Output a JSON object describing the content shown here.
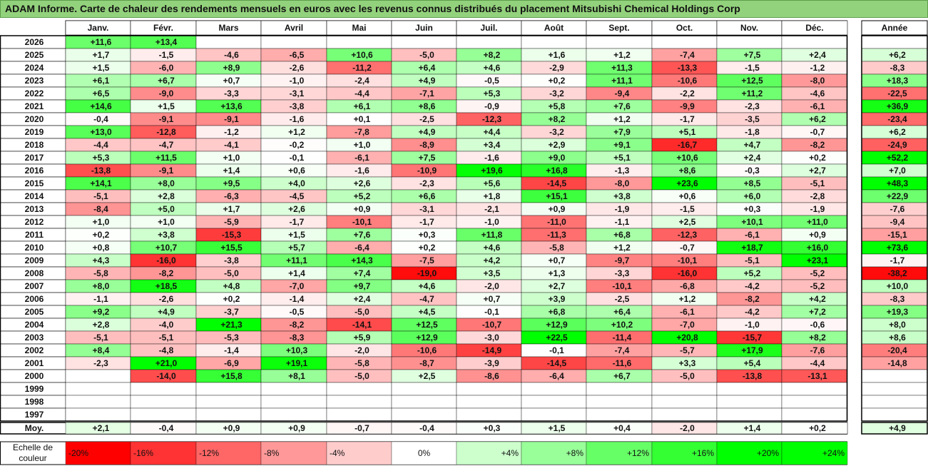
{
  "title": "ADAM Informe. Carte de chaleur des rendements mensuels en euros avec les revenus connus distribués du placement Mitsubishi Chemical Holdings Corp",
  "chart_data": {
    "type": "heatmap",
    "months": [
      "Janv.",
      "Févr.",
      "Mars",
      "Avril",
      "Mai",
      "Juin",
      "Juil.",
      "Août",
      "Sept.",
      "Oct.",
      "Nov.",
      "Déc."
    ],
    "year_header": "Année",
    "rows": [
      {
        "year": "2026",
        "months": [
          "+11,6",
          "+13,4",
          "",
          "",
          "",
          "",
          "",
          "",
          "",
          "",
          "",
          ""
        ],
        "annual": ""
      },
      {
        "year": "2025",
        "months": [
          "+1,7",
          "-1,5",
          "-4,6",
          "-6,5",
          "+10,6",
          "-5,0",
          "+8,2",
          "+1,6",
          "+1,2",
          "-7,4",
          "+7,5",
          "+2,4"
        ],
        "annual": "+6,2"
      },
      {
        "year": "2024",
        "months": [
          "+1,5",
          "-6,0",
          "+8,9",
          "-2,6",
          "-11,2",
          "+6,4",
          "+4,6",
          "-2,9",
          "+11,3",
          "-13,3",
          "-1,5",
          "-1,2"
        ],
        "annual": "-8,3"
      },
      {
        "year": "2023",
        "months": [
          "+6,1",
          "+6,7",
          "+0,7",
          "-1,0",
          "-2,4",
          "+4,9",
          "-0,5",
          "+0,2",
          "+11,1",
          "-10,6",
          "+12,5",
          "-8,0"
        ],
        "annual": "+18,3"
      },
      {
        "year": "2022",
        "months": [
          "+6,5",
          "-9,0",
          "-3,3",
          "-3,1",
          "-4,4",
          "-7,1",
          "+5,3",
          "-3,2",
          "-9,4",
          "-2,2",
          "+11,2",
          "-4,6"
        ],
        "annual": "-22,5"
      },
      {
        "year": "2021",
        "months": [
          "+14,6",
          "+1,5",
          "+13,6",
          "-3,8",
          "+6,1",
          "+8,6",
          "-0,9",
          "+5,8",
          "+7,6",
          "-9,9",
          "-2,3",
          "-6,1"
        ],
        "annual": "+36,9"
      },
      {
        "year": "2020",
        "months": [
          "-0,4",
          "-9,1",
          "-9,1",
          "-1,6",
          "+0,1",
          "-2,5",
          "-12,3",
          "+8,2",
          "+1,2",
          "-1,7",
          "-3,5",
          "+6,2"
        ],
        "annual": "-23,4"
      },
      {
        "year": "2019",
        "months": [
          "+13,0",
          "-12,8",
          "-1,2",
          "+1,2",
          "-7,8",
          "+4,9",
          "+4,4",
          "-3,2",
          "+7,9",
          "+5,1",
          "-1,8",
          "-0,7"
        ],
        "annual": "+6,2"
      },
      {
        "year": "2018",
        "months": [
          "-4,4",
          "-4,7",
          "-4,1",
          "-0,2",
          "+1,0",
          "-8,9",
          "+3,4",
          "+2,9",
          "+9,1",
          "-16,7",
          "+4,7",
          "-8,2"
        ],
        "annual": "-24,9"
      },
      {
        "year": "2017",
        "months": [
          "+5,3",
          "+11,5",
          "+1,0",
          "-0,1",
          "-6,1",
          "+7,5",
          "-1,6",
          "+9,0",
          "+5,1",
          "+10,6",
          "+2,4",
          "+0,2"
        ],
        "annual": "+52,2"
      },
      {
        "year": "2016",
        "months": [
          "-13,8",
          "-9,1",
          "+1,4",
          "+0,6",
          "-1,6",
          "-10,9",
          "+19,6",
          "+16,8",
          "-1,3",
          "+8,6",
          "-0,3",
          "+2,7"
        ],
        "annual": "+7,0"
      },
      {
        "year": "2015",
        "months": [
          "+14,1",
          "+8,0",
          "+9,5",
          "+4,0",
          "+2,6",
          "-2,3",
          "+5,6",
          "-14,5",
          "-8,0",
          "+23,6",
          "+8,5",
          "-5,1"
        ],
        "annual": "+48,3"
      },
      {
        "year": "2014",
        "months": [
          "-5,1",
          "+2,8",
          "-6,3",
          "-4,5",
          "+5,2",
          "+6,6",
          "+1,8",
          "+15,1",
          "+3,8",
          "+0,6",
          "+6,0",
          "-2,8"
        ],
        "annual": "+22,9"
      },
      {
        "year": "2013",
        "months": [
          "-8,4",
          "+5,0",
          "+1,7",
          "+2,6",
          "+0,9",
          "-3,1",
          "-2,1",
          "+0,9",
          "-1,9",
          "-1,5",
          "+0,3",
          "-1,9"
        ],
        "annual": "-7,6"
      },
      {
        "year": "2012",
        "months": [
          "+1,0",
          "+1,0",
          "-5,9",
          "-1,7",
          "-10,1",
          "-1,7",
          "-1,0",
          "-11,0",
          "-1,1",
          "+2,5",
          "+10,1",
          "+11,0"
        ],
        "annual": "-9,4"
      },
      {
        "year": "2011",
        "months": [
          "+0,2",
          "+3,8",
          "-15,3",
          "+1,5",
          "+7,6",
          "+0,3",
          "+11,8",
          "-11,3",
          "+6,8",
          "-12,3",
          "-6,1",
          "+0,9"
        ],
        "annual": "-15,1"
      },
      {
        "year": "2010",
        "months": [
          "+0,8",
          "+10,7",
          "+15,5",
          "+5,7",
          "-6,4",
          "+0,2",
          "+4,6",
          "-5,8",
          "+1,2",
          "-0,7",
          "+18,7",
          "+16,0"
        ],
        "annual": "+73,6"
      },
      {
        "year": "2009",
        "months": [
          "+4,3",
          "-16,0",
          "-3,8",
          "+11,1",
          "+14,3",
          "-7,5",
          "+4,2",
          "+0,7",
          "-9,7",
          "-10,1",
          "-5,1",
          "+23,1"
        ],
        "annual": "-1,7"
      },
      {
        "year": "2008",
        "months": [
          "-5,8",
          "-8,2",
          "-5,0",
          "+1,4",
          "+7,4",
          "-19,0",
          "+3,5",
          "+1,3",
          "-3,3",
          "-16,0",
          "+5,2",
          "-5,2"
        ],
        "annual": "-38,2"
      },
      {
        "year": "2007",
        "months": [
          "+8,0",
          "+18,5",
          "+4,8",
          "-7,0",
          "+9,7",
          "+4,6",
          "-2,0",
          "+2,7",
          "-10,1",
          "-6,8",
          "-4,2",
          "-5,2"
        ],
        "annual": "+10,0"
      },
      {
        "year": "2006",
        "months": [
          "-1,1",
          "-2,6",
          "+0,2",
          "-1,4",
          "+2,4",
          "-4,7",
          "+0,7",
          "+3,9",
          "-2,5",
          "+1,2",
          "-8,2",
          "+4,2"
        ],
        "annual": "-8,3"
      },
      {
        "year": "2005",
        "months": [
          "+9,2",
          "+4,9",
          "-3,7",
          "-0,5",
          "-5,0",
          "+4,5",
          "-0,1",
          "+6,8",
          "+6,4",
          "-6,1",
          "-4,2",
          "+7,2"
        ],
        "annual": "+19,3"
      },
      {
        "year": "2004",
        "months": [
          "+2,8",
          "-4,0",
          "+21,3",
          "-8,2",
          "-14,1",
          "+12,5",
          "-10,7",
          "+12,9",
          "+10,2",
          "-7,0",
          "-1,0",
          "-0,6"
        ],
        "annual": "+8,0"
      },
      {
        "year": "2003",
        "months": [
          "-5,1",
          "-5,1",
          "-5,3",
          "-8,3",
          "+5,9",
          "+12,9",
          "-3,0",
          "+22,5",
          "-11,4",
          "+20,8",
          "-15,7",
          "+8,2"
        ],
        "annual": "+8,6"
      },
      {
        "year": "2002",
        "months": [
          "+8,4",
          "-4,8",
          "-1,4",
          "+10,3",
          "-2,0",
          "-10,6",
          "-14,9",
          "-0,1",
          "-7,4",
          "-5,7",
          "+17,9",
          "-7,6"
        ],
        "annual": "-20,4"
      },
      {
        "year": "2001",
        "months": [
          "-2,3",
          "+21,0",
          "-6,9",
          "+19,1",
          "-5,8",
          "-8,7",
          "-3,9",
          "-14,5",
          "-11,6",
          "+3,3",
          "+5,4",
          "-4,4"
        ],
        "annual": "-14,8"
      },
      {
        "year": "2000",
        "months": [
          "",
          "-14,0",
          "+15,8",
          "+8,1",
          "-5,0",
          "+2,5",
          "-8,6",
          "-6,4",
          "+6,7",
          "-5,0",
          "-13,8",
          "-13,1"
        ],
        "annual": ""
      },
      {
        "year": "1999",
        "months": [
          "",
          "",
          "",
          "",
          "",
          "",
          "",
          "",
          "",
          "",
          "",
          ""
        ],
        "annual": ""
      },
      {
        "year": "1998",
        "months": [
          "",
          "",
          "",
          "",
          "",
          "",
          "",
          "",
          "",
          "",
          "",
          ""
        ],
        "annual": ""
      },
      {
        "year": "1997",
        "months": [
          "",
          "",
          "",
          "",
          "",
          "",
          "",
          "",
          "",
          "",
          "",
          ""
        ],
        "annual": ""
      }
    ],
    "average": {
      "label": "Moy.",
      "months": [
        "+2,1",
        "-0,4",
        "+0,9",
        "+0,9",
        "-0,7",
        "-0,4",
        "+0,3",
        "+1,5",
        "+0,4",
        "-2,0",
        "+1,4",
        "+0,2"
      ],
      "annual": "+4,9"
    },
    "color_scale": {
      "label_line1": "Echelle de",
      "label_line2": "couleur",
      "steps": [
        {
          "label": "-20%",
          "color": "#ff0000"
        },
        {
          "label": "-16%",
          "color": "#ff3333"
        },
        {
          "label": "-12%",
          "color": "#ff6666"
        },
        {
          "label": "-8%",
          "color": "#ff9999"
        },
        {
          "label": "-4%",
          "color": "#ffcccc"
        },
        {
          "label": "0%",
          "color": "#ffffff"
        },
        {
          "label": "+4%",
          "color": "#ccffcc"
        },
        {
          "label": "+8%",
          "color": "#99ff99"
        },
        {
          "label": "+12%",
          "color": "#66ff66"
        },
        {
          "label": "+16%",
          "color": "#33ff33"
        },
        {
          "label": "+20%",
          "color": "#00ff00"
        },
        {
          "label": "+24%",
          "color": "#00ff00"
        }
      ]
    },
    "colors": {
      "negative_max": "#ff0000",
      "positive_max": "#00ff00",
      "neutral": "#ffffff",
      "title_bg": "#93d27c",
      "grid": "#000000"
    }
  }
}
